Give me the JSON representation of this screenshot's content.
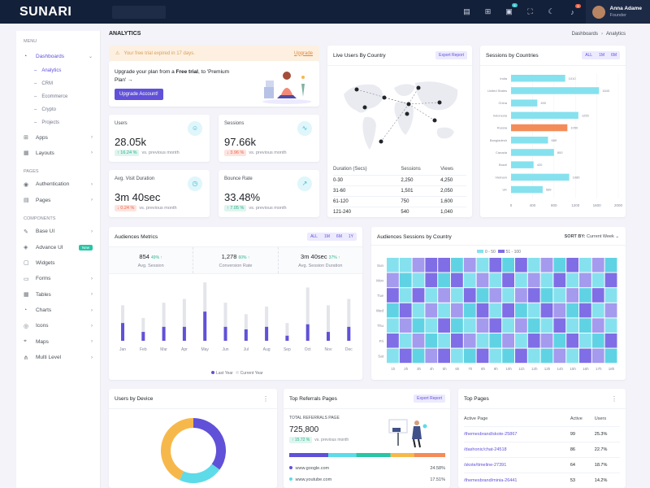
{
  "brand": {
    "logo": "SUNARI"
  },
  "user": {
    "name": "Anna Adame",
    "role": "Founder"
  },
  "topbar": {
    "cart_badge": "5",
    "notif_badge": "3"
  },
  "sidebar": {
    "menu_header": "Menu",
    "pages_header": "Pages",
    "components_header": "Components",
    "dashboards": "Dashboards",
    "sub": [
      "Analytics",
      "CRM",
      "Ecommerce",
      "Crypto",
      "Projects"
    ],
    "items_a": [
      "Apps",
      "Layouts"
    ],
    "items_b": [
      "Authentication",
      "Pages"
    ],
    "items_c": [
      "Base UI",
      "Advance UI",
      "Widgets",
      "Forms",
      "Tables",
      "Charts",
      "Icons",
      "Maps",
      "Multi Level"
    ],
    "new_badge": "New"
  },
  "page": {
    "title": "ANALYTICS",
    "bc_root": "Dashboards",
    "bc_current": "Analytics"
  },
  "trial": {
    "text": "Your free trial expired in 17 days.",
    "link": "Upgrade"
  },
  "upgrade": {
    "line1a": "Upgrade your plan from a ",
    "line1b": "Free trial",
    "line1c": ", to 'Premium",
    "line2": "Plan' →",
    "button": "Upgrade Account!"
  },
  "metrics": [
    {
      "label": "Users",
      "value": "28.05k",
      "change": "↑ 16.24 %",
      "note": "vs. previous month",
      "dir": "up"
    },
    {
      "label": "Sessions",
      "value": "97.66k",
      "change": "↓ 3.96 %",
      "note": "vs. previous month",
      "dir": "down"
    },
    {
      "label": "Avg. Visit Duration",
      "value": "3m 40sec",
      "change": "↓ 0.24 %",
      "note": "vs. previous month",
      "dir": "down"
    },
    {
      "label": "Bounce Rate",
      "value": "33.48%",
      "change": "↑ 7.05 %",
      "note": "vs. previous month",
      "dir": "up"
    }
  ],
  "live_users": {
    "title": "Live Users By Country",
    "export": "Export Report",
    "headers": [
      "Duration (Secs)",
      "Sessions",
      "Views"
    ],
    "rows": [
      [
        "0-30",
        "2,250",
        "4,250"
      ],
      [
        "31-60",
        "1,501",
        "2,050"
      ],
      [
        "61-120",
        "750",
        "1,600"
      ],
      [
        "121-240",
        "540",
        "1,040"
      ]
    ]
  },
  "sessions_country": {
    "title": "Sessions by Countries",
    "filters": [
      "ALL",
      "1M",
      "6M"
    ]
  },
  "audience": {
    "title": "Audiences Metrics",
    "filters": [
      "ALL",
      "1M",
      "6M",
      "1Y"
    ],
    "stats": [
      {
        "value": "854",
        "pct": "49% ↑",
        "label": "Avg. Session"
      },
      {
        "value": "1,278",
        "pct": "60% ↑",
        "label": "Conversion Rate"
      },
      {
        "value": "3m 40sec",
        "pct": "37% ↑",
        "label": "Avg. Session Duration"
      }
    ],
    "legend": [
      "Last Year",
      "Current Year"
    ]
  },
  "heat": {
    "title": "Audiences Sessions by Country",
    "sort_label": "SORT BY:",
    "sort_value": "Current Week",
    "legend": [
      "0 - 50",
      "51 - 100"
    ]
  },
  "device": {
    "title": "Users by Device"
  },
  "referrals": {
    "title": "Top Referrals Pages",
    "export": "Export Report",
    "sub": "TOTAL REFERRALS PAGE",
    "value": "725,800",
    "change": "↑ 15.72 %",
    "note": "vs. previous month",
    "list": [
      {
        "name": "www.google.com",
        "pct": "24.58%",
        "color": "#6051d8"
      },
      {
        "name": "www.youtube.com",
        "pct": "17.51%",
        "color": "#5ddbe8"
      }
    ]
  },
  "top_pages": {
    "title": "Top Pages",
    "headers": [
      "Active Page",
      "Active",
      "Users"
    ],
    "rows": [
      [
        "/themesbrand/skote-25867",
        "99",
        "25.3%"
      ],
      [
        "/dashonic/chat-24518",
        "86",
        "22.7%"
      ],
      [
        "/skote/timeline-27391",
        "64",
        "18.7%"
      ],
      [
        "/themesbrand/minia-26441",
        "53",
        "14.2%"
      ]
    ]
  },
  "colors": {
    "primary": "#6051d8",
    "cyan": "#86e1ee",
    "orange": "#f48c59",
    "success": "#29b28b",
    "danger": "#f06548"
  },
  "chart_data": [
    {
      "type": "bar",
      "title": "Sessions by Countries",
      "categories": [
        "India",
        "United States",
        "China",
        "Indonesia",
        "Russia",
        "Bangladesh",
        "Canada",
        "Brazil",
        "Vietnam",
        "UK"
      ],
      "values": [
        1010,
        1640,
        490,
        1255,
        1050,
        689,
        800,
        420,
        1085,
        589
      ],
      "highlight": "Russia",
      "xlim": [
        0,
        2000
      ],
      "xticks": [
        0,
        400,
        800,
        1200,
        1600,
        2000
      ]
    },
    {
      "type": "bar",
      "title": "Audiences Metrics",
      "categories": [
        "Jan",
        "Feb",
        "Mar",
        "Apr",
        "May",
        "Jun",
        "Jul",
        "Aug",
        "Sep",
        "Oct",
        "Nov",
        "Dec"
      ],
      "series": [
        {
          "name": "Last Year",
          "values": [
            28,
            18,
            30,
            33,
            46,
            30,
            21,
            27,
            14,
            42,
            28,
            33
          ]
        },
        {
          "name": "Current Year",
          "values": [
            14,
            7,
            11,
            11,
            23,
            11,
            9,
            11,
            4,
            13,
            7,
            11
          ]
        }
      ],
      "ylim": [
        0,
        50
      ]
    },
    {
      "type": "heatmap",
      "title": "Audiences Sessions by Country",
      "x": [
        "1h",
        "2h",
        "3h",
        "4h",
        "5h",
        "6h",
        "7h",
        "8h",
        "9h",
        "10h",
        "11h",
        "12h",
        "13h",
        "14h",
        "15h",
        "16h",
        "17h",
        "18h"
      ],
      "y": [
        "Sun",
        "Mon",
        "Tue",
        "Wed",
        "Thu",
        "Fri",
        "Sat"
      ],
      "values": [
        [
          30,
          20,
          60,
          70,
          80,
          40,
          60,
          30,
          70,
          40,
          70,
          30,
          60,
          40,
          70,
          30,
          60,
          40
        ],
        [
          60,
          40,
          30,
          70,
          40,
          70,
          30,
          60,
          30,
          70,
          20,
          60,
          30,
          80,
          30,
          60,
          30,
          70
        ],
        [
          70,
          30,
          70,
          30,
          60,
          30,
          70,
          40,
          60,
          30,
          60,
          70,
          40,
          30,
          60,
          40,
          80,
          30
        ],
        [
          40,
          70,
          30,
          60,
          30,
          60,
          40,
          70,
          30,
          70,
          40,
          30,
          70,
          60,
          40,
          70,
          30,
          60
        ],
        [
          30,
          60,
          40,
          20,
          70,
          40,
          30,
          60,
          70,
          30,
          60,
          40,
          30,
          70,
          30,
          40,
          60,
          30
        ],
        [
          70,
          30,
          60,
          40,
          30,
          70,
          60,
          30,
          40,
          60,
          30,
          70,
          60,
          40,
          70,
          30,
          40,
          70
        ],
        [
          30,
          70,
          40,
          60,
          70,
          30,
          40,
          70,
          30,
          40,
          70,
          30,
          40,
          60,
          30,
          70,
          60,
          40
        ]
      ]
    },
    {
      "type": "pie",
      "title": "Users by Device",
      "values": [
        35,
        22,
        43
      ],
      "colors": [
        "#6051d8",
        "#5ddbe8",
        "#f7b84b"
      ]
    }
  ]
}
